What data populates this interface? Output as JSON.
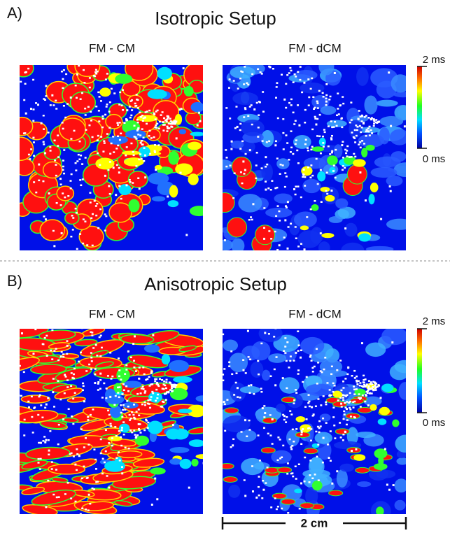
{
  "panels": [
    {
      "label": "A)",
      "title": "Isotropic Setup",
      "images": [
        {
          "title": "FM - CM"
        },
        {
          "title": "FM - dCM"
        }
      ],
      "colorbar": {
        "max_label": "2 ms",
        "min_label": "0 ms"
      }
    },
    {
      "label": "B)",
      "title": "Anisotropic Setup",
      "images": [
        {
          "title": "FM - CM"
        },
        {
          "title": "FM - dCM"
        }
      ],
      "colorbar": {
        "max_label": "2 ms",
        "min_label": "0 ms"
      }
    }
  ],
  "scale_bar": "2 cm"
}
